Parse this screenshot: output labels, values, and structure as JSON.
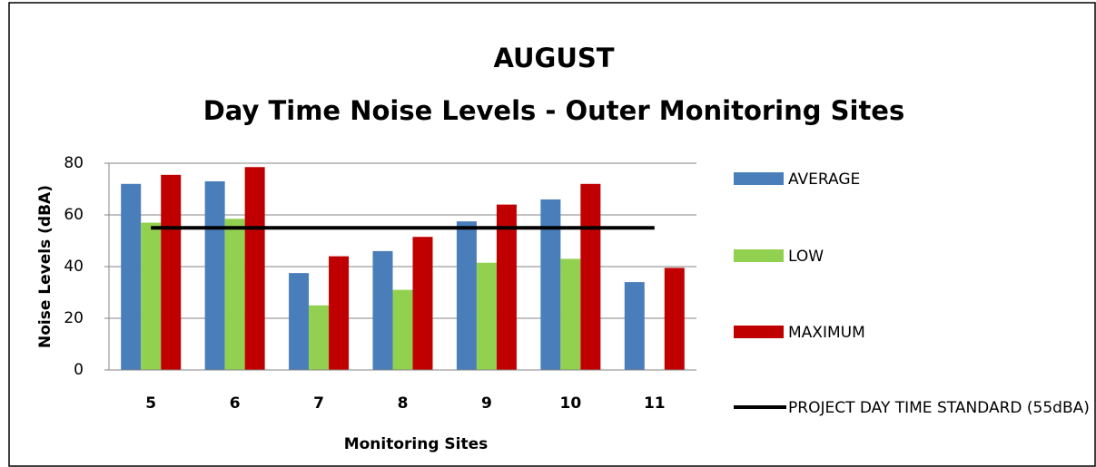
{
  "chart_data": {
    "type": "bar",
    "title": "AUGUST",
    "subtitle": "Day Time Noise Levels - Outer Monitoring Sites",
    "x_label": "Monitoring Sites",
    "y_label": "Noise Levels (dBA)",
    "categories": [
      "5",
      "6",
      "7",
      "8",
      "9",
      "10",
      "11"
    ],
    "series": [
      {
        "name": "AVERAGE",
        "color": "#4a7ebb",
        "type": "bar",
        "values": [
          72,
          73,
          37.5,
          46,
          57.5,
          66,
          34
        ]
      },
      {
        "name": "LOW",
        "color": "#92d050",
        "type": "bar",
        "values": [
          57,
          58.5,
          25,
          31,
          41.5,
          43,
          null
        ]
      },
      {
        "name": "MAXIMUM",
        "color": "#c00000",
        "type": "bar",
        "values": [
          75.5,
          78.5,
          44,
          51.5,
          64,
          72,
          39.5
        ]
      },
      {
        "name": "PROJECT DAY TIME STANDARD (55dBA)",
        "color": "#000000",
        "type": "line",
        "values": [
          55,
          55,
          55,
          55,
          55,
          55,
          55
        ]
      }
    ],
    "ylim": [
      0,
      80
    ],
    "yticks": [
      0,
      20,
      40,
      60,
      80
    ],
    "grid": true,
    "legend": "right"
  }
}
